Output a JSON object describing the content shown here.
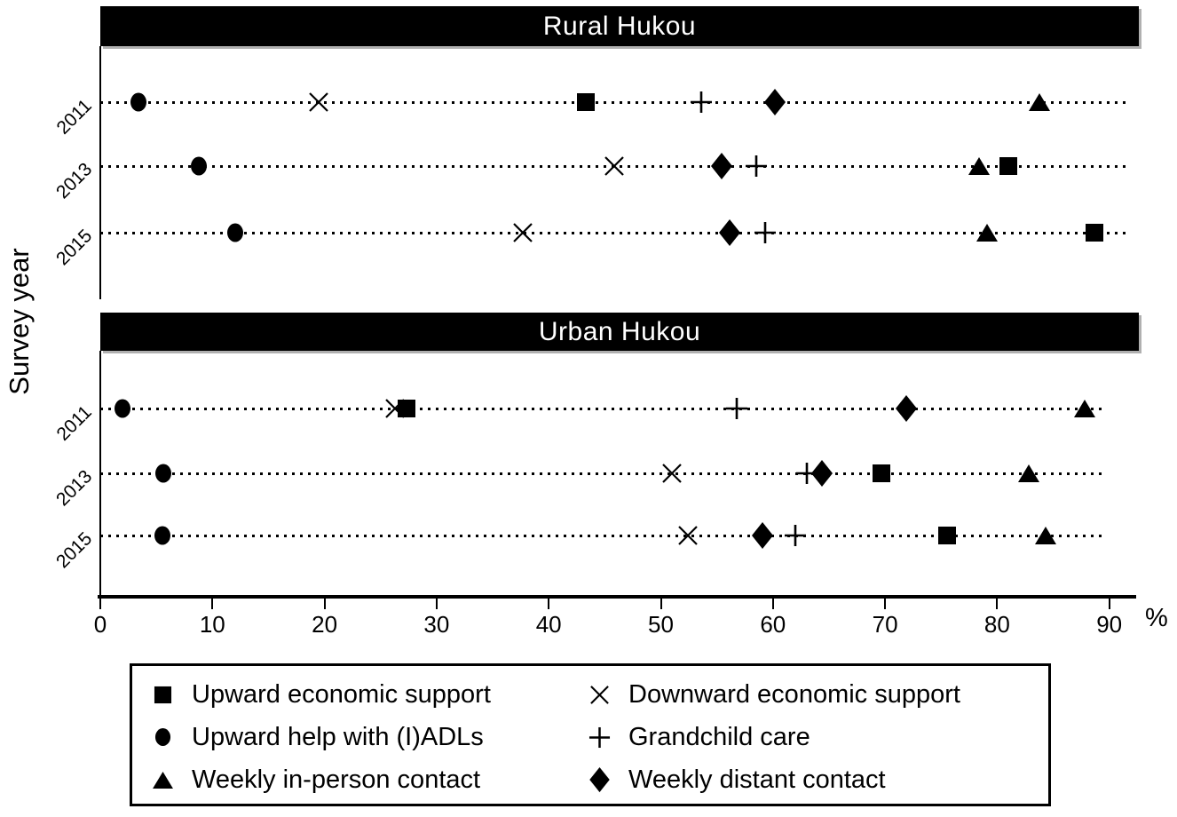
{
  "colors": {
    "foreground": "#000000",
    "background": "#ffffff",
    "title_text": "#ffffff"
  },
  "chart_data": {
    "type": "scatter",
    "ylabel": "Survey year",
    "x_unit": "%",
    "xlim": [
      0,
      95
    ],
    "xticks": [
      0,
      10,
      20,
      30,
      40,
      50,
      60,
      70,
      80,
      90
    ],
    "grid": "dotted horizontal leader lines per row",
    "legend_position": "bottom",
    "series": [
      {
        "marker": "square",
        "label": "Upward economic support"
      },
      {
        "marker": "x",
        "label": "Downward economic support"
      },
      {
        "marker": "circle",
        "label": "Upward help with (I)ADLs"
      },
      {
        "marker": "plus",
        "label": "Grandchild care"
      },
      {
        "marker": "triangle",
        "label": "Weekly in-person contact"
      },
      {
        "marker": "diamond",
        "label": "Weekly distant contact"
      }
    ],
    "panels": [
      {
        "title": "Rural Hukou",
        "rows": [
          {
            "year": "2011",
            "values": {
              "circle": 3.4,
              "x": 19.5,
              "square": 43.3,
              "plus": 53.6,
              "diamond": 60.2,
              "triangle": 83.8
            }
          },
          {
            "year": "2013",
            "values": {
              "circle": 8.8,
              "x": 45.8,
              "diamond": 55.4,
              "plus": 58.5,
              "triangle": 78.4,
              "square": 81.0
            }
          },
          {
            "year": "2015",
            "values": {
              "circle": 12.0,
              "x": 37.7,
              "diamond": 56.1,
              "plus": 59.3,
              "triangle": 79.1,
              "square": 88.7
            }
          }
        ]
      },
      {
        "title": "Urban Hukou",
        "rows": [
          {
            "year": "2011",
            "values": {
              "circle": 2.0,
              "x": 26.3,
              "square": 27.3,
              "plus": 56.8,
              "diamond": 71.9,
              "triangle": 87.8
            }
          },
          {
            "year": "2013",
            "values": {
              "circle": 5.6,
              "x": 51.0,
              "plus": 63.0,
              "diamond": 64.4,
              "square": 69.7,
              "triangle": 82.8
            }
          },
          {
            "year": "2015",
            "values": {
              "circle": 5.5,
              "x": 52.4,
              "diamond": 59.1,
              "plus": 62.0,
              "square": 75.5,
              "triangle": 84.3
            }
          }
        ]
      }
    ]
  }
}
